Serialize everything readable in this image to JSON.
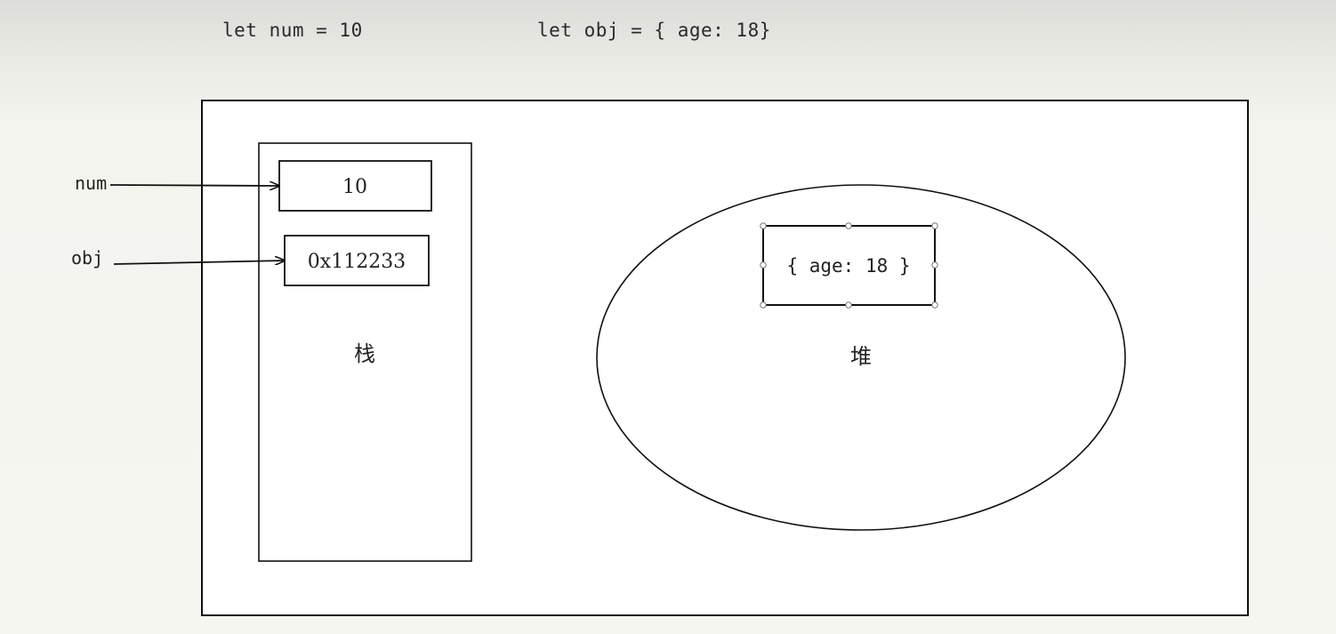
{
  "code": {
    "num_declaration": "let num = 10",
    "obj_declaration": "let obj = { age: 18}"
  },
  "variables": {
    "num_label": "num",
    "obj_label": "obj"
  },
  "stack": {
    "label": "栈",
    "num_value": "10",
    "obj_value": "0x112233"
  },
  "heap": {
    "label": "堆",
    "object_value": "{ age: 18 }"
  }
}
